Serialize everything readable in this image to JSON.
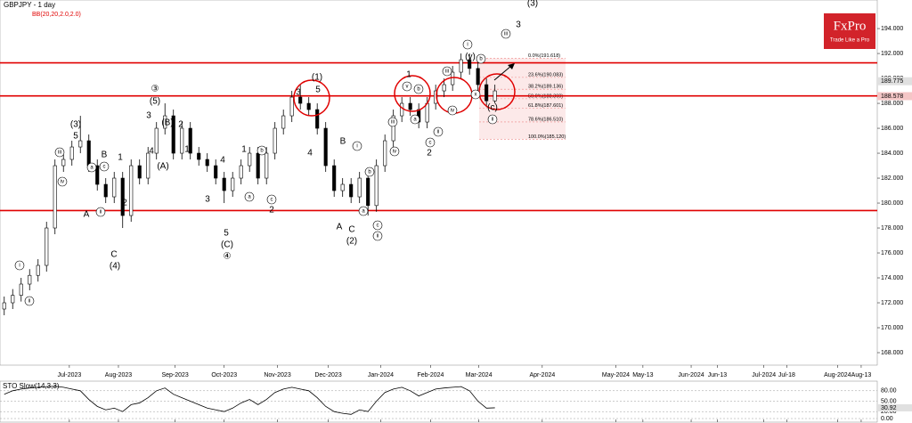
{
  "chart_data": {
    "type": "candlestick",
    "title": "GBPJPY - 1 day",
    "indicator": "BB(20,20,2.0,2.0)",
    "open": [
      171.5,
      172,
      172.6,
      173.5,
      174.2,
      175,
      178,
      183,
      183.5,
      184.5,
      185,
      183,
      181.5,
      180.5,
      182,
      179,
      183,
      182,
      184,
      186,
      187,
      184,
      186,
      184,
      183.5,
      183,
      182,
      181,
      182,
      183,
      184,
      182,
      184,
      186,
      187,
      188.5,
      188,
      187.5,
      186,
      183,
      181,
      181.5,
      180.5,
      182,
      179.8,
      183,
      185,
      187,
      188,
      187.5,
      186.5,
      188,
      189,
      189.5,
      190.5,
      191.5,
      190.8,
      189.5,
      188.2
    ],
    "high": [
      172.5,
      173.1,
      174,
      174.7,
      175.5,
      178.5,
      183.5,
      184,
      185,
      187,
      185.5,
      183.5,
      182,
      182.5,
      182.5,
      183.5,
      183.5,
      184.5,
      186.5,
      188,
      187.5,
      186.5,
      186.5,
      184.5,
      184,
      183.5,
      182.5,
      182.5,
      183.5,
      184.5,
      184.5,
      184.5,
      186.5,
      187.5,
      189,
      189.5,
      188.5,
      188,
      186.5,
      183.5,
      182,
      182,
      182.5,
      182.5,
      183.5,
      185.5,
      187.5,
      188.5,
      188.5,
      188,
      188.5,
      189.5,
      190,
      191,
      192,
      192,
      191.3,
      190,
      189.5
    ],
    "low": [
      171,
      171.5,
      172.1,
      173,
      173.7,
      174.5,
      177.5,
      182.5,
      183,
      184,
      182.5,
      181,
      180,
      180,
      178,
      178.5,
      181.5,
      181.5,
      183.5,
      185.5,
      183.5,
      183.5,
      183.5,
      183,
      182.5,
      181.5,
      180,
      180.5,
      181.5,
      182.5,
      181.5,
      181.5,
      183.5,
      185.5,
      186.5,
      187.5,
      187,
      185.5,
      182.5,
      180.5,
      180.5,
      180,
      180,
      179,
      179.3,
      182.5,
      184.5,
      186.5,
      187,
      186,
      186,
      187.5,
      188.5,
      189,
      190,
      190.3,
      189,
      187.7,
      188
    ],
    "close": [
      172,
      172.6,
      173.5,
      174.2,
      175,
      178,
      183,
      183.5,
      184.5,
      185,
      183,
      181.5,
      180.5,
      182,
      179,
      183,
      182,
      184,
      186,
      187,
      184,
      186,
      184,
      183.5,
      183,
      182,
      181,
      182,
      183,
      184,
      182,
      184,
      186,
      187,
      188.5,
      188,
      187.5,
      186,
      183,
      181,
      181.5,
      180.5,
      182,
      179.8,
      183,
      185,
      187,
      188,
      187.5,
      186.5,
      188,
      189,
      189.5,
      190.5,
      191.5,
      190.8,
      189.5,
      188.2,
      189
    ],
    "xlim": [
      -0.5,
      103.2
    ],
    "xticks": [
      {
        "value": 7.7,
        "label": "Jul-2023"
      },
      {
        "value": 13.5,
        "label": "Aug-2023"
      },
      {
        "value": 20.2,
        "label": "Sep-2023"
      },
      {
        "value": 26.0,
        "label": "Oct-2023"
      },
      {
        "value": 32.3,
        "label": "Nov-2023"
      },
      {
        "value": 38.3,
        "label": "Dec-2023"
      },
      {
        "value": 44.5,
        "label": "Jan-2024"
      },
      {
        "value": 50.4,
        "label": "Feb-2024"
      },
      {
        "value": 56.1,
        "label": "Mar-2024"
      },
      {
        "value": 63.6,
        "label": "Apr-2024"
      },
      {
        "value": 72.3,
        "label": "May-2024"
      },
      {
        "value": 75.5,
        "label": "May-13"
      },
      {
        "value": 81.2,
        "label": "Jun-2024"
      },
      {
        "value": 84.3,
        "label": "Jun-13"
      },
      {
        "value": 89.8,
        "label": "Jul-2024"
      },
      {
        "value": 92.5,
        "label": "Jul-18"
      },
      {
        "value": 98.5,
        "label": "Aug-2024"
      },
      {
        "value": 101.3,
        "label": "Aug-13"
      }
    ],
    "ylim": [
      167,
      196.29
    ],
    "yticks": [
      {
        "value": 168,
        "label": "168.000"
      },
      {
        "value": 170,
        "label": "170.000"
      },
      {
        "value": 172,
        "label": "172.000"
      },
      {
        "value": 174,
        "label": "174.000"
      },
      {
        "value": 176,
        "label": "176.000"
      },
      {
        "value": 178,
        "label": "178.000"
      },
      {
        "value": 180,
        "label": "180.000"
      },
      {
        "value": 182,
        "label": "182.000"
      },
      {
        "value": 184,
        "label": "184.000"
      },
      {
        "value": 186,
        "label": "186.000"
      },
      {
        "value": 188,
        "label": "188.000"
      },
      {
        "value": 190,
        "label": "190.000"
      },
      {
        "value": 192,
        "label": "192.000"
      },
      {
        "value": 194,
        "label": "194.000"
      }
    ],
    "price_labels": [
      {
        "value": 189.775,
        "label": "189.775"
      },
      {
        "value": 188.578,
        "label": "188.578"
      }
    ],
    "levels": [
      191.25,
      188.6,
      179.4
    ],
    "level_color": "#e00000",
    "fib_levels": [
      {
        "value": 191.618,
        "label": "0.0%(191.618)"
      },
      {
        "value": 190.083,
        "label": "23.6%(190.083)"
      },
      {
        "value": 189.136,
        "label": "38.2%(189.136)"
      },
      {
        "value": 188.369,
        "label": "50.0%(188.369)"
      },
      {
        "value": 187.601,
        "label": "61.8%(187.601)"
      },
      {
        "value": 186.51,
        "label": "78.6%(186.510)"
      },
      {
        "value": 185.12,
        "label": "100.0%(185.120)"
      }
    ],
    "annotations": [
      "(3)",
      "5",
      "iii",
      "iv",
      "A",
      "ii",
      "B",
      "c",
      "a",
      "2",
      "C",
      "(4)",
      "1",
      "i",
      "ii",
      "③",
      "(5)",
      "3",
      "4",
      "(B)",
      "2",
      "1",
      "(A)",
      "3",
      "4",
      "5",
      "(C)",
      "④",
      "a",
      "b",
      "1",
      "c",
      "2",
      "3",
      "(1)",
      "5",
      "4",
      "B",
      "A",
      "C",
      "(2)",
      "i",
      "b",
      "a",
      "c",
      "ii",
      "iii",
      "iv",
      "1",
      "v",
      "a",
      "b",
      "c",
      "ii",
      "2",
      "iii",
      "iv",
      "i",
      "(y)",
      "b",
      "(c)",
      "ii",
      "3",
      "iii",
      "(3)",
      "x"
    ],
    "logo": "FxPro",
    "tagline": "Trade Like a Pro",
    "sto": {
      "name": "STO Slow(14,3,3)",
      "ylim": [
        0,
        100
      ],
      "yticks": [
        {
          "value": 80,
          "label": "80.00"
        },
        {
          "value": 50,
          "label": "50.00"
        },
        {
          "value": 20,
          "label": "20.00"
        },
        {
          "value": 0,
          "label": "0.00"
        }
      ],
      "values": [
        70,
        80,
        85,
        88,
        90,
        92,
        93,
        90,
        85,
        80,
        55,
        35,
        25,
        30,
        20,
        40,
        45,
        60,
        80,
        88,
        70,
        60,
        50,
        40,
        30,
        25,
        20,
        30,
        45,
        55,
        40,
        55,
        75,
        85,
        90,
        85,
        80,
        60,
        35,
        20,
        15,
        12,
        25,
        20,
        50,
        75,
        85,
        90,
        80,
        65,
        75,
        85,
        88,
        90,
        92,
        80,
        50,
        30,
        30.92
      ]
    }
  }
}
